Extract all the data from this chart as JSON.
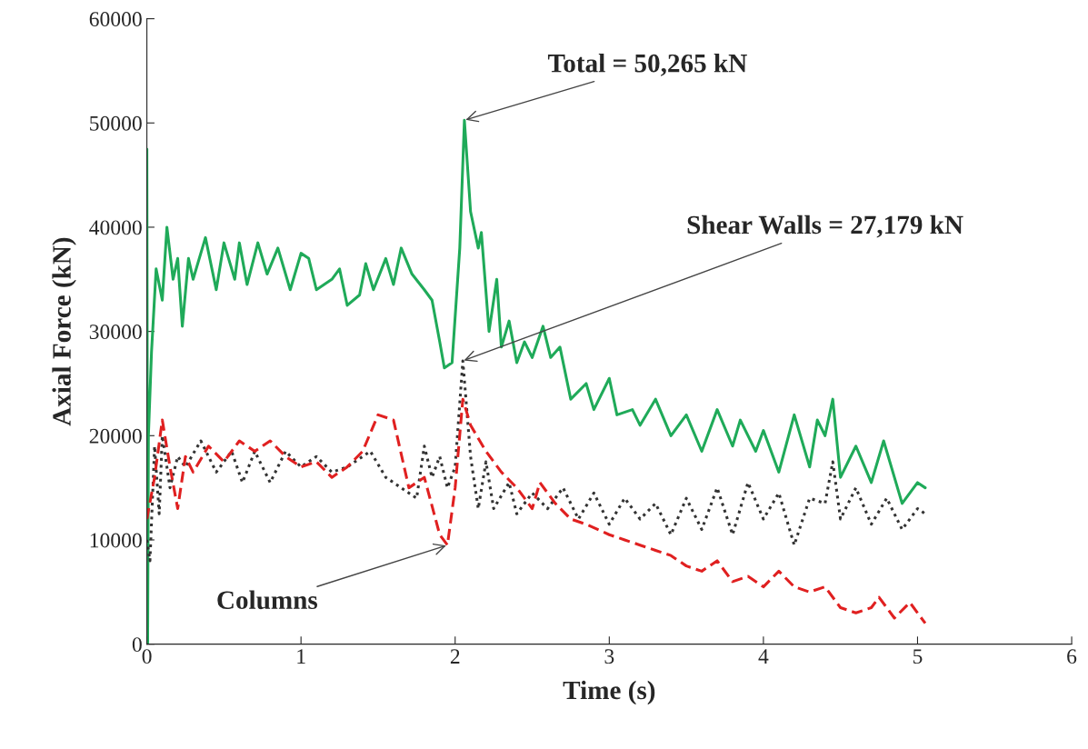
{
  "chart_data": {
    "type": "line",
    "xlabel": "Time (s)",
    "ylabel": "Axial Force (kN)",
    "xlim": [
      0,
      6
    ],
    "xticks": [
      0,
      1,
      2,
      3,
      4,
      5,
      6
    ],
    "ylim": [
      0,
      60000
    ],
    "yticks": [
      0,
      10000,
      20000,
      30000,
      40000,
      50000,
      60000
    ],
    "grid": false,
    "legend": false,
    "series": [
      {
        "color": "#1faa59",
        "line_style": "solid",
        "x": [
          0,
          0.005,
          0.01,
          0.03,
          0.06,
          0.1,
          0.13,
          0.17,
          0.2,
          0.23,
          0.27,
          0.3,
          0.38,
          0.45,
          0.5,
          0.57,
          0.6,
          0.65,
          0.72,
          0.78,
          0.85,
          0.93,
          1.0,
          1.05,
          1.1,
          1.2,
          1.25,
          1.3,
          1.38,
          1.42,
          1.47,
          1.55,
          1.6,
          1.65,
          1.72,
          1.8,
          1.85,
          1.9,
          1.93,
          1.98,
          2.03,
          2.06,
          2.1,
          2.15,
          2.17,
          2.22,
          2.27,
          2.3,
          2.35,
          2.4,
          2.45,
          2.5,
          2.57,
          2.62,
          2.68,
          2.75,
          2.85,
          2.9,
          3.0,
          3.05,
          3.15,
          3.2,
          3.3,
          3.4,
          3.5,
          3.6,
          3.7,
          3.8,
          3.85,
          3.95,
          4.0,
          4.1,
          4.2,
          4.3,
          4.35,
          4.4,
          4.45,
          4.5,
          4.6,
          4.7,
          4.78,
          4.9,
          5.0,
          5.05
        ],
        "values": [
          47500,
          0,
          20000,
          28000,
          36000,
          33000,
          40000,
          35000,
          37000,
          30500,
          37000,
          35000,
          39000,
          34000,
          38500,
          35000,
          38500,
          34500,
          38500,
          35500,
          38000,
          34000,
          37500,
          37000,
          34000,
          35000,
          36000,
          32500,
          33500,
          36500,
          34000,
          37000,
          34500,
          38000,
          35500,
          34000,
          33000,
          29000,
          26500,
          27000,
          38000,
          50265,
          41500,
          38000,
          39500,
          30000,
          35000,
          28500,
          31000,
          27000,
          29000,
          27500,
          30500,
          27500,
          28500,
          23500,
          25000,
          22500,
          25500,
          22000,
          22500,
          21000,
          23500,
          20000,
          22000,
          18500,
          22500,
          19000,
          21500,
          18500,
          20500,
          16500,
          22000,
          17000,
          21500,
          20000,
          23500,
          16000,
          19000,
          15500,
          19500,
          13500,
          15500,
          15000
        ]
      },
      {
        "color": "#333333",
        "line_style": "dotted",
        "x": [
          0,
          0.02,
          0.05,
          0.08,
          0.1,
          0.15,
          0.2,
          0.25,
          0.35,
          0.45,
          0.55,
          0.62,
          0.7,
          0.8,
          0.9,
          1.0,
          1.1,
          1.2,
          1.3,
          1.45,
          1.55,
          1.65,
          1.75,
          1.8,
          1.85,
          1.9,
          1.95,
          2.0,
          2.05,
          2.1,
          2.15,
          2.2,
          2.25,
          2.35,
          2.4,
          2.5,
          2.6,
          2.7,
          2.8,
          2.9,
          3.0,
          3.1,
          3.2,
          3.3,
          3.4,
          3.5,
          3.6,
          3.7,
          3.8,
          3.9,
          4.0,
          4.1,
          4.2,
          4.3,
          4.4,
          4.45,
          4.5,
          4.6,
          4.7,
          4.8,
          4.9,
          5.0,
          5.05
        ],
        "values": [
          10000,
          8000,
          19000,
          12500,
          20000,
          15000,
          18000,
          17000,
          19500,
          16500,
          18500,
          15500,
          18500,
          15500,
          18500,
          17000,
          18000,
          16500,
          17000,
          18500,
          16000,
          15000,
          14000,
          19000,
          16000,
          18000,
          15000,
          17000,
          27179,
          18000,
          13000,
          17500,
          13000,
          15500,
          12500,
          14500,
          13000,
          15000,
          12000,
          14500,
          11500,
          14000,
          12000,
          13500,
          10500,
          14000,
          11000,
          15000,
          10500,
          15500,
          12000,
          14500,
          9500,
          14000,
          13500,
          17500,
          12000,
          15000,
          11500,
          14000,
          11000,
          13000,
          12500
        ]
      },
      {
        "color": "#e02020",
        "line_style": "dashed",
        "x": [
          0,
          0.05,
          0.1,
          0.15,
          0.2,
          0.25,
          0.3,
          0.4,
          0.5,
          0.6,
          0.7,
          0.8,
          0.9,
          1.0,
          1.1,
          1.2,
          1.3,
          1.4,
          1.5,
          1.6,
          1.7,
          1.8,
          1.9,
          1.95,
          2.0,
          2.05,
          2.1,
          2.2,
          2.3,
          2.4,
          2.5,
          2.55,
          2.65,
          2.75,
          2.85,
          3.0,
          3.1,
          3.2,
          3.3,
          3.4,
          3.5,
          3.6,
          3.7,
          3.8,
          3.9,
          4.0,
          4.1,
          4.2,
          4.3,
          4.4,
          4.5,
          4.6,
          4.7,
          4.75,
          4.85,
          4.95,
          5.05
        ],
        "values": [
          12000,
          16000,
          21500,
          17000,
          13000,
          18000,
          16500,
          19000,
          17500,
          19500,
          18500,
          19500,
          18000,
          17000,
          17500,
          16000,
          17000,
          18500,
          22000,
          21500,
          15000,
          16000,
          10500,
          9500,
          15000,
          23500,
          21000,
          18500,
          16500,
          15000,
          13000,
          15500,
          13500,
          12000,
          11500,
          10500,
          10000,
          9500,
          9000,
          8500,
          7500,
          7000,
          8000,
          6000,
          6500,
          5500,
          7000,
          5500,
          5000,
          5500,
          3500,
          3000,
          3500,
          4500,
          2500,
          4000,
          2000
        ]
      }
    ],
    "annotations": [
      {
        "text": "Total = 50,265 kN",
        "x": 2.06,
        "y": 50265
      },
      {
        "text": "Shear Walls = 27,179 kN",
        "x": 2.05,
        "y": 27179
      },
      {
        "text": "Columns",
        "x": 1.95,
        "y": 9500
      }
    ]
  }
}
